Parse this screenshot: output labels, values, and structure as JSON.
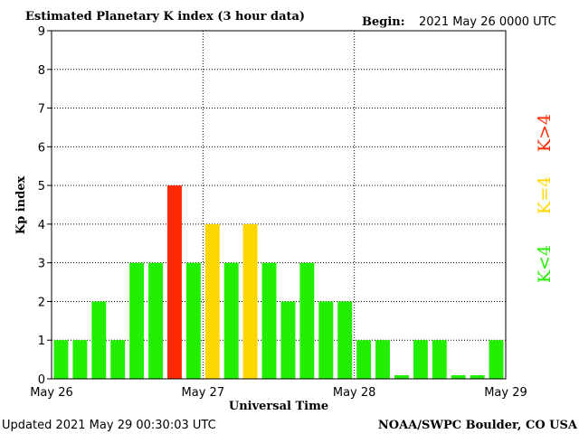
{
  "header": {
    "title": "Estimated Planetary K index (3 hour data)",
    "begin_label": "Begin:",
    "begin_value": "2021 May 26 0000 UTC"
  },
  "footer": {
    "updated": "Updated 2021 May 29 00:30:03 UTC",
    "credit": "NOAA/SWPC Boulder, CO USA"
  },
  "legend": {
    "high": "K>4",
    "mid": "K=4",
    "low": "K<4"
  },
  "colors": {
    "low": "#22ee00",
    "mid": "#ffd700",
    "high": "#ff2a00",
    "grid": "#000000"
  },
  "chart_data": {
    "type": "bar",
    "title": "Estimated Planetary K index (3 hour data)",
    "xlabel": "Universal Time",
    "ylabel": "Kp index",
    "ylim": [
      0,
      9
    ],
    "yticks": [
      0,
      1,
      2,
      3,
      4,
      5,
      6,
      7,
      8,
      9
    ],
    "xticks": [
      "May 26",
      "May 27",
      "May 28",
      "May 29"
    ],
    "grid": true,
    "values": [
      1,
      1,
      2,
      1,
      3,
      3,
      5,
      3,
      4,
      3,
      4,
      3,
      2,
      3,
      2,
      2,
      1,
      1,
      0,
      1,
      1,
      0,
      0,
      1
    ]
  }
}
